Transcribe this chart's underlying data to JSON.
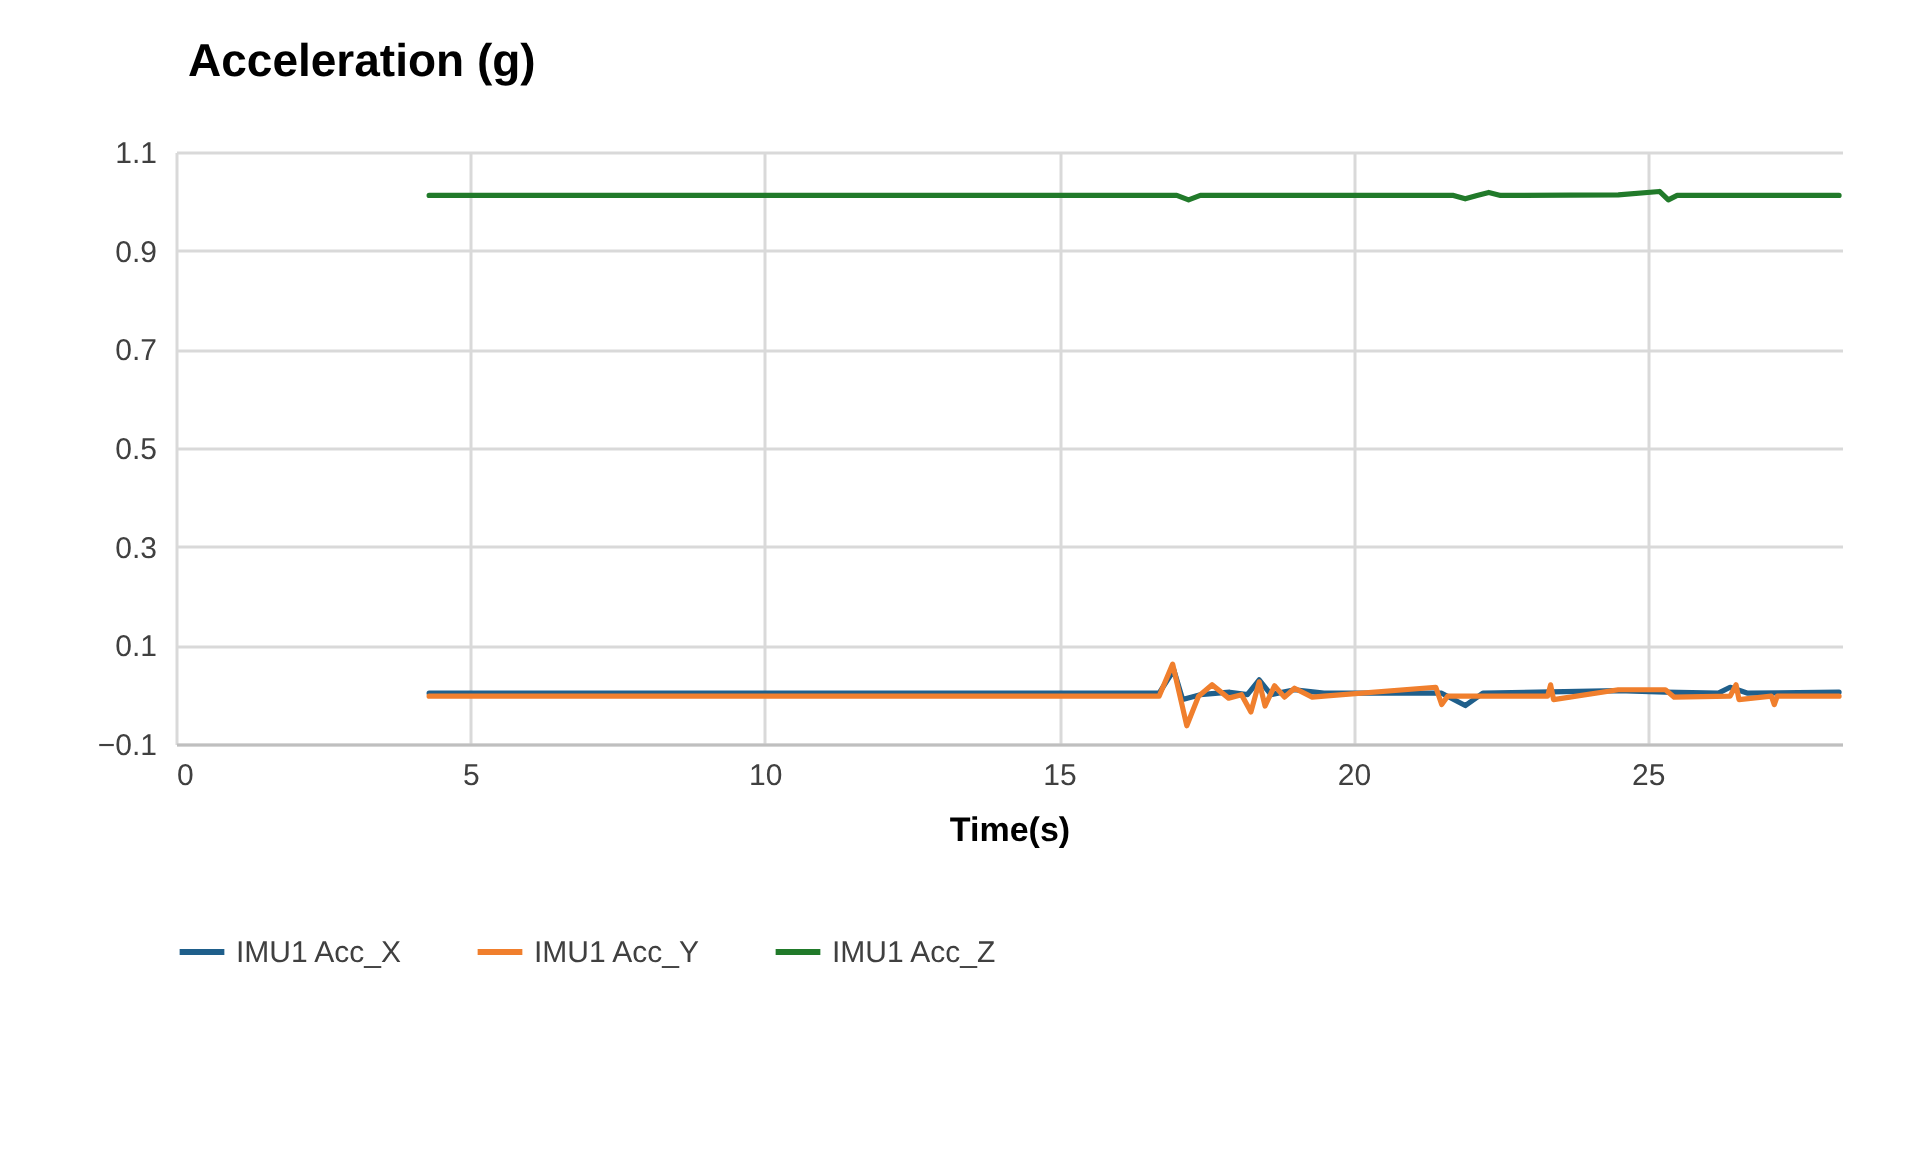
{
  "chart_data": {
    "type": "line",
    "title": "Acceleration (g)",
    "xlabel": "Time(s)",
    "xlim": [
      0,
      28.3
    ],
    "xticks": [
      0,
      5,
      10,
      15,
      20,
      25
    ],
    "ylim": [
      -0.1,
      1.1
    ],
    "yticks": [
      -0.1,
      0.1,
      0.3,
      0.5,
      0.7,
      0.9,
      1.1
    ],
    "grid": true,
    "legend": "bottom",
    "line_style": "solid",
    "marker": "none",
    "series": [
      {
        "name": "IMU1 Acc_X",
        "color": "#1f5f8b",
        "x": [
          4.3,
          16.7,
          16.95,
          17.1,
          17.4,
          17.9,
          18.2,
          18.4,
          18.6,
          19.0,
          19.5,
          21.5,
          21.9,
          22.2,
          24.5,
          25.3,
          26.2,
          26.4,
          26.7,
          28.25
        ],
        "values": [
          0.003,
          0.003,
          0.05,
          -0.01,
          0.0,
          0.005,
          0.0,
          0.03,
          0.0,
          0.01,
          0.003,
          0.003,
          -0.022,
          0.003,
          0.008,
          0.005,
          0.003,
          0.015,
          0.003,
          0.005
        ]
      },
      {
        "name": "IMU1 Acc_Y",
        "color": "#f07f2d",
        "x": [
          4.3,
          16.7,
          16.93,
          17.17,
          17.37,
          17.6,
          17.88,
          18.1,
          18.26,
          18.4,
          18.5,
          18.66,
          18.83,
          19.0,
          19.3,
          19.5,
          21.4,
          21.5,
          21.6,
          23.3,
          23.35,
          23.4,
          24.5,
          25.3,
          25.45,
          26.4,
          26.5,
          26.55,
          27.1,
          27.15,
          27.2,
          28.25
        ],
        "values": [
          -0.003,
          -0.003,
          0.062,
          -0.063,
          -0.003,
          0.02,
          -0.007,
          0.0,
          -0.035,
          0.026,
          -0.023,
          0.018,
          -0.005,
          0.013,
          -0.005,
          -0.003,
          0.015,
          -0.02,
          -0.003,
          -0.003,
          0.02,
          -0.01,
          0.01,
          0.01,
          -0.005,
          -0.003,
          0.02,
          -0.01,
          -0.003,
          -0.02,
          -0.003,
          -0.003
        ]
      },
      {
        "name": "IMU1 Acc_Z",
        "color": "#217a2a",
        "x": [
          4.3,
          17.0,
          17.2,
          17.4,
          21.7,
          21.9,
          22.1,
          22.3,
          22.5,
          24.5,
          25.2,
          25.35,
          25.5,
          28.25
        ],
        "values": [
          1.012,
          1.012,
          1.003,
          1.012,
          1.012,
          1.005,
          1.012,
          1.018,
          1.012,
          1.013,
          1.02,
          1.003,
          1.012,
          1.012
        ]
      }
    ]
  }
}
